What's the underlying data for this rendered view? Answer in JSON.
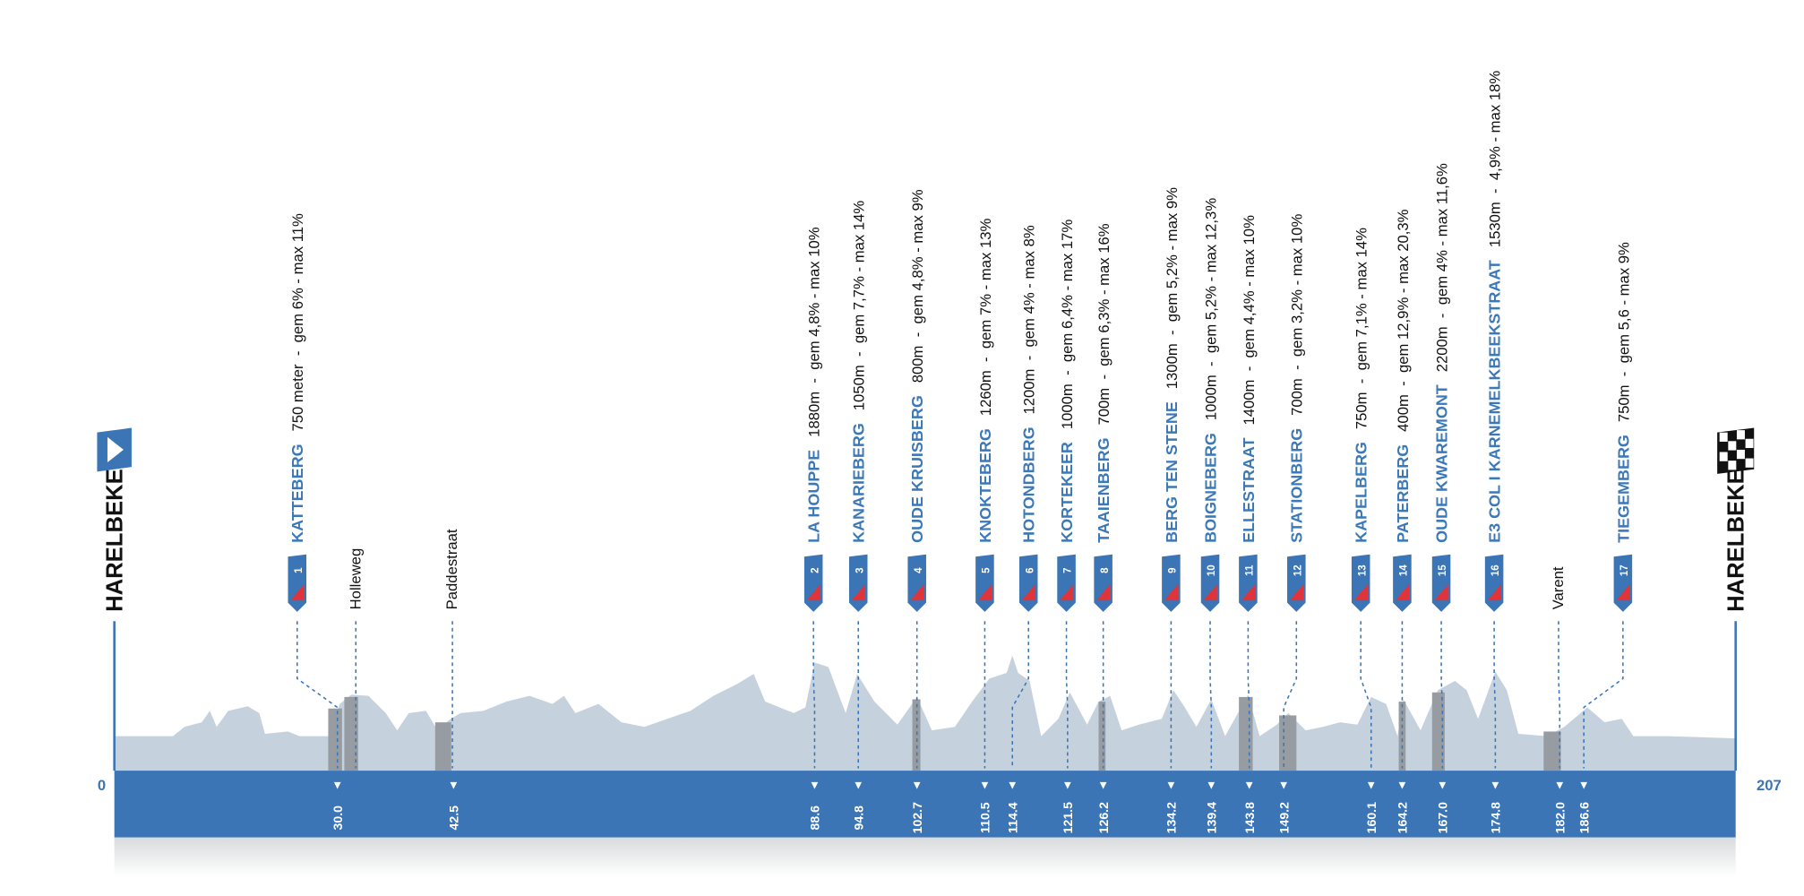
{
  "start": {
    "name": "HARELBEKE",
    "km": "0"
  },
  "finish": {
    "name": "HARELBEKE",
    "km": "207"
  },
  "climbs": [
    {
      "number": "1",
      "name": "KATTEBERG",
      "details": "750 meter  -  gem 6% - max 11%"
    },
    {
      "number": "2",
      "name": "LA HOUPPE",
      "details": "1880m  -  gem 4,8% - max 10%"
    },
    {
      "number": "3",
      "name": "KANARIEBERG",
      "details": "1050m  -  gem 7,7% - max 14%"
    },
    {
      "number": "4",
      "name": "OUDE KRUISBERG",
      "details": "800m  -  gem 4,8% - max 9%"
    },
    {
      "number": "5",
      "name": "KNOKTEBERG",
      "details": "1260m  -  gem 7% - max 13%"
    },
    {
      "number": "6",
      "name": "HOTONDBERG",
      "details": "1200m  -  gem 4% - max 8%"
    },
    {
      "number": "7",
      "name": "KORTEKEER",
      "details": "1000m  -  gem 6,4% - max 17%"
    },
    {
      "number": "8",
      "name": "TAAIENBERG",
      "details": "700m  -  gem 6,3% - max 16%"
    },
    {
      "number": "9",
      "name": "BERG TEN STENE",
      "details": "1300m  -  gem 5,2% - max 9%"
    },
    {
      "number": "10",
      "name": "BOIGNEBERG",
      "details": "1000m  -  gem 5,2% - max 12,3%"
    },
    {
      "number": "11",
      "name": "ELLESTRAAT",
      "details": "1400m  -  gem 4,4% - max 10%"
    },
    {
      "number": "12",
      "name": "STATIONBERG",
      "details": "700m  -  gem 3,2% - max 10%"
    },
    {
      "number": "13",
      "name": "KAPELBERG",
      "details": "750m  -  gem 7,1% - max 14%"
    },
    {
      "number": "14",
      "name": "PATERBERG",
      "details": "400m  -  gem 12,9% - max 20,3%"
    },
    {
      "number": "15",
      "name": "OUDE KWAREMONT",
      "details": "2200m  -  gem 4% - max 11,6%"
    },
    {
      "number": "16",
      "name": "E3 COL I KARNEMELKBEEKSTRAAT",
      "details": "1530m  -  4,9% - max 18%"
    },
    {
      "number": "17",
      "name": "TIEGEMBERG",
      "details": "750m  -  gem 5,6 - max 9%"
    }
  ],
  "sectors": [
    {
      "name": "Holleweg"
    },
    {
      "name": "Paddestraat"
    },
    {
      "name": "Varent"
    }
  ],
  "km_markers": [
    "30.0",
    "42.5",
    "88.6",
    "94.8",
    "102.7",
    "110.5",
    "114.4",
    "121.5",
    "126.2",
    "134.2",
    "139.4",
    "143.8",
    "149.2",
    "160.1",
    "164.2",
    "167.0",
    "174.8",
    "182.0",
    "186.6"
  ]
}
